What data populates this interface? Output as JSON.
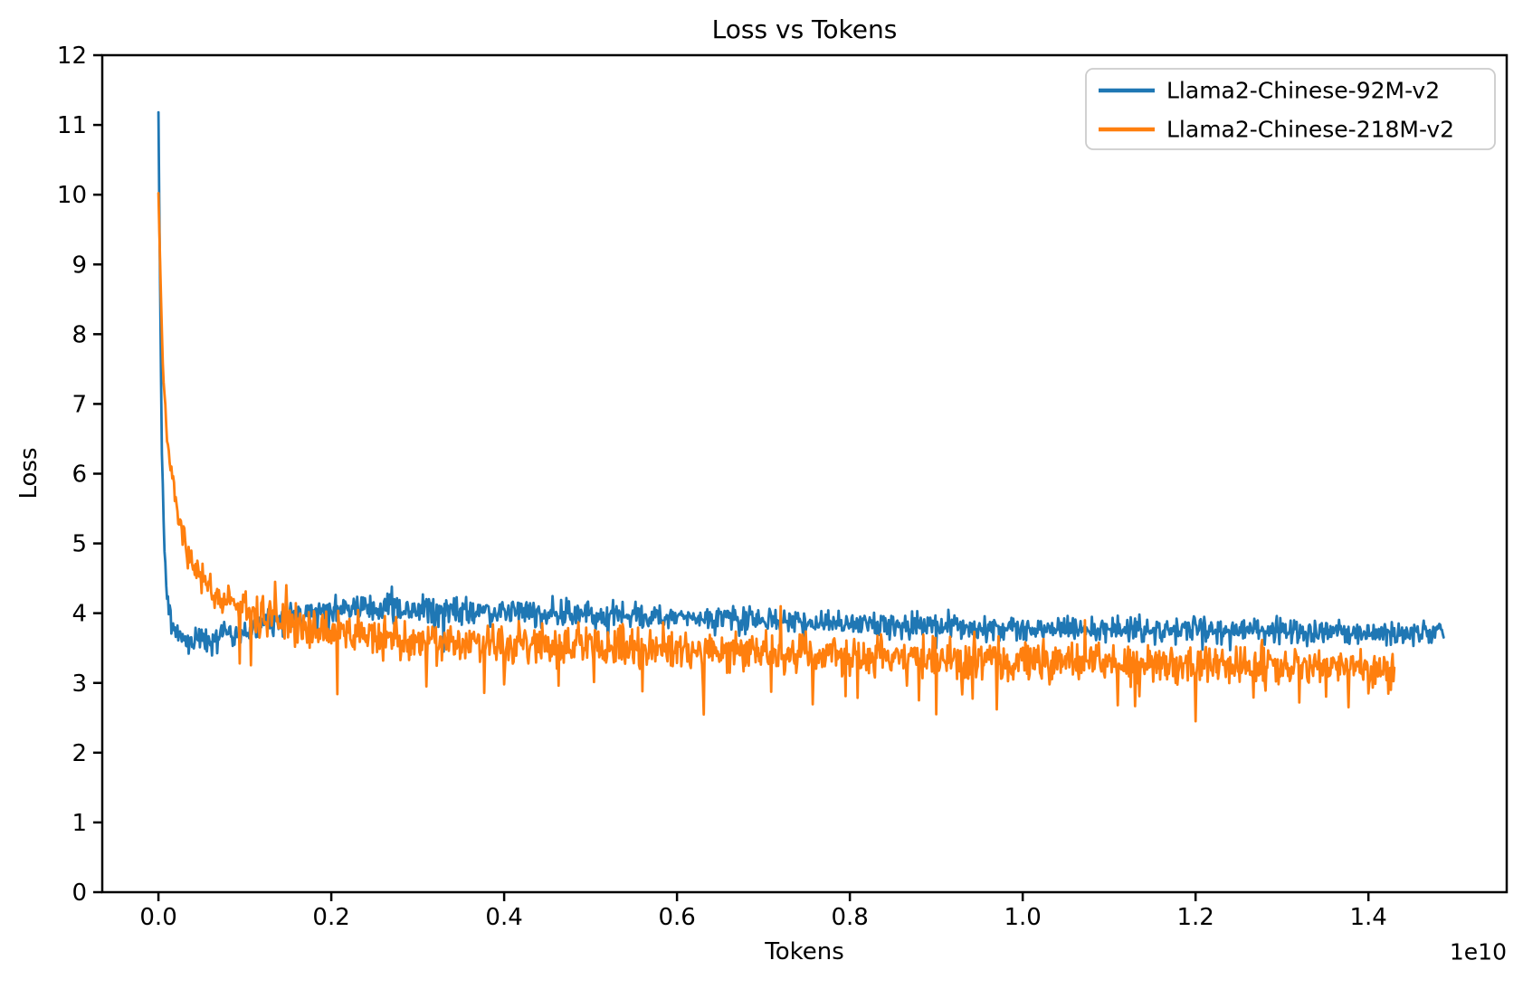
{
  "chart_data": {
    "type": "line",
    "title": "Loss vs Tokens",
    "xlabel": "Tokens",
    "ylabel": "Loss",
    "x_offset_text": "1e10",
    "x_unit": 10000000000.0,
    "xlim": [
      -0.065,
      1.56
    ],
    "ylim": [
      0,
      12
    ],
    "x_ticks": [
      0.0,
      0.2,
      0.4,
      0.6,
      0.8,
      1.0,
      1.2,
      1.4
    ],
    "x_tick_labels": [
      "0.0",
      "0.2",
      "0.4",
      "0.6",
      "0.8",
      "1.0",
      "1.2",
      "1.4"
    ],
    "y_ticks": [
      0,
      1,
      2,
      3,
      4,
      5,
      6,
      7,
      8,
      9,
      10,
      11,
      12
    ],
    "y_tick_labels": [
      "0",
      "1",
      "2",
      "3",
      "4",
      "5",
      "6",
      "7",
      "8",
      "9",
      "10",
      "11",
      "12"
    ],
    "grid": false,
    "legend": {
      "position": "upper right",
      "frame": true,
      "entries": [
        "Llama2-Chinese-92M-v2",
        "Llama2-Chinese-218M-v2"
      ]
    },
    "series": [
      {
        "name": "Llama2-Chinese-92M-v2",
        "color": "#1f77b4",
        "x_start": 0.0,
        "x_end": 1.487,
        "n_points": 1488,
        "seed": 42,
        "start_value": 11.17,
        "end_value": 3.72,
        "trend": [
          [
            0.0,
            11.17
          ],
          [
            0.002,
            8.6
          ],
          [
            0.004,
            6.3
          ],
          [
            0.007,
            4.95
          ],
          [
            0.01,
            4.25
          ],
          [
            0.015,
            3.85
          ],
          [
            0.02,
            3.7
          ],
          [
            0.03,
            3.63
          ],
          [
            0.06,
            3.62
          ],
          [
            0.09,
            3.68
          ],
          [
            0.12,
            3.82
          ],
          [
            0.16,
            3.98
          ],
          [
            0.22,
            4.06
          ],
          [
            0.3,
            4.05
          ],
          [
            0.4,
            4.02
          ],
          [
            0.5,
            3.98
          ],
          [
            0.6,
            3.95
          ],
          [
            0.7,
            3.9
          ],
          [
            0.8,
            3.85
          ],
          [
            0.9,
            3.8
          ],
          [
            1.0,
            3.78
          ],
          [
            1.1,
            3.77
          ],
          [
            1.2,
            3.76
          ],
          [
            1.3,
            3.74
          ],
          [
            1.4,
            3.73
          ],
          [
            1.487,
            3.72
          ]
        ],
        "noise_amp": [
          [
            0.0,
            0.02
          ],
          [
            0.01,
            0.08
          ],
          [
            0.02,
            0.12
          ],
          [
            0.06,
            0.13
          ],
          [
            0.3,
            0.14
          ],
          [
            0.7,
            0.13
          ],
          [
            1.487,
            0.12
          ]
        ],
        "down_spike_prob": 0.004,
        "down_spike_scale": [
          1.2,
          2.4
        ],
        "up_spike_prob": 0.002,
        "up_spike_scale": [
          1.2,
          2.0
        ],
        "events": [
          [
            0.035,
            3.42
          ],
          [
            0.27,
            4.38
          ],
          [
            0.33,
            3.45
          ],
          [
            0.52,
            3.5
          ],
          [
            0.9,
            3.5
          ],
          [
            1.24,
            3.47
          ]
        ]
      },
      {
        "name": "Llama2-Chinese-218M-v2",
        "color": "#ff7f0e",
        "x_start": 0.0,
        "x_end": 1.43,
        "n_points": 1431,
        "seed": 7,
        "start_value": 10.04,
        "end_value": 3.2,
        "trend": [
          [
            0.0,
            10.04
          ],
          [
            0.002,
            9.0
          ],
          [
            0.005,
            7.6
          ],
          [
            0.008,
            6.9
          ],
          [
            0.012,
            6.3
          ],
          [
            0.018,
            5.7
          ],
          [
            0.025,
            5.25
          ],
          [
            0.035,
            4.85
          ],
          [
            0.045,
            4.55
          ],
          [
            0.06,
            4.35
          ],
          [
            0.08,
            4.18
          ],
          [
            0.1,
            4.05
          ],
          [
            0.12,
            3.95
          ],
          [
            0.15,
            3.85
          ],
          [
            0.2,
            3.74
          ],
          [
            0.26,
            3.66
          ],
          [
            0.34,
            3.6
          ],
          [
            0.44,
            3.55
          ],
          [
            0.56,
            3.5
          ],
          [
            0.7,
            3.44
          ],
          [
            0.85,
            3.38
          ],
          [
            1.0,
            3.33
          ],
          [
            1.15,
            3.28
          ],
          [
            1.3,
            3.24
          ],
          [
            1.43,
            3.2
          ]
        ],
        "noise_amp": [
          [
            0.0,
            0.03
          ],
          [
            0.01,
            0.1
          ],
          [
            0.03,
            0.15
          ],
          [
            0.06,
            0.17
          ],
          [
            0.1,
            0.2
          ],
          [
            0.2,
            0.21
          ],
          [
            1.0,
            0.21
          ],
          [
            1.43,
            0.2
          ]
        ],
        "down_spike_prob": 0.01,
        "down_spike_scale": [
          1.5,
          4.0
        ],
        "up_spike_prob": 0.004,
        "up_spike_scale": [
          1.2,
          2.2
        ],
        "events": [
          [
            0.094,
            3.28
          ],
          [
            0.135,
            4.45
          ],
          [
            0.148,
            4.4
          ],
          [
            0.31,
            2.95
          ],
          [
            0.4,
            2.98
          ],
          [
            0.56,
            2.88
          ],
          [
            0.63,
            2.95
          ],
          [
            0.72,
            4.1
          ],
          [
            0.88,
            2.75
          ],
          [
            0.9,
            2.55
          ],
          [
            0.97,
            2.62
          ],
          [
            1.11,
            2.68
          ],
          [
            1.2,
            2.45
          ],
          [
            1.32,
            2.72
          ],
          [
            1.4,
            2.85
          ]
        ]
      }
    ]
  }
}
